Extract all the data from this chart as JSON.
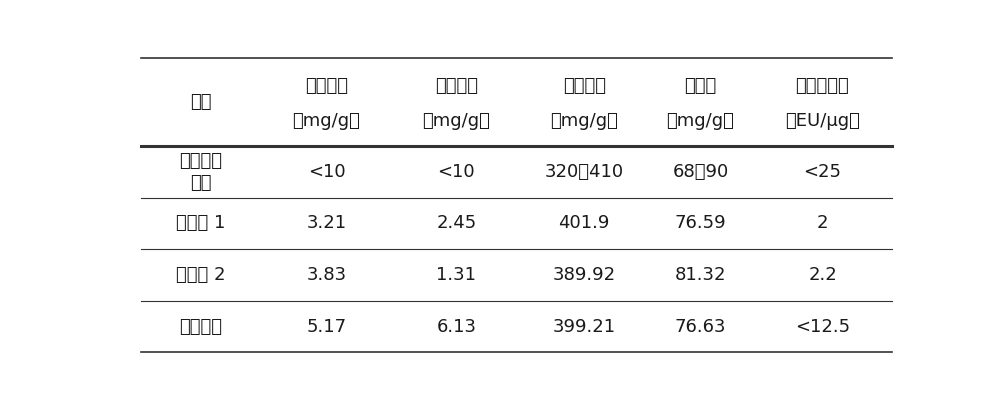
{
  "col_titles": [
    "蛋白含量",
    "核酸含量",
    "核糖含量",
    "磷含量",
    "内毒素含量"
  ],
  "col_units": [
    "（mg/g）",
    "（mg/g）",
    "（mg/g）",
    "（mg/g）",
    "（EU/μg）"
  ],
  "header_col0_line1": "项目",
  "rows": [
    [
      "国家药典",
      "标准",
      "<10",
      "<10",
      "320～410",
      "68～90",
      "<25"
    ],
    [
      "实施例 1",
      "",
      "3.21",
      "2.45",
      "401.9",
      "76.59",
      "2"
    ],
    [
      "实施例 2",
      "",
      "3.83",
      "1.31",
      "389.92",
      "81.32",
      "2.2"
    ],
    [
      "现有专利",
      "",
      "5.17",
      "6.13",
      "399.21",
      "76.63",
      "<12.5"
    ]
  ],
  "background_color": "#ffffff",
  "text_color": "#1a1a1a",
  "line_color": "#333333"
}
